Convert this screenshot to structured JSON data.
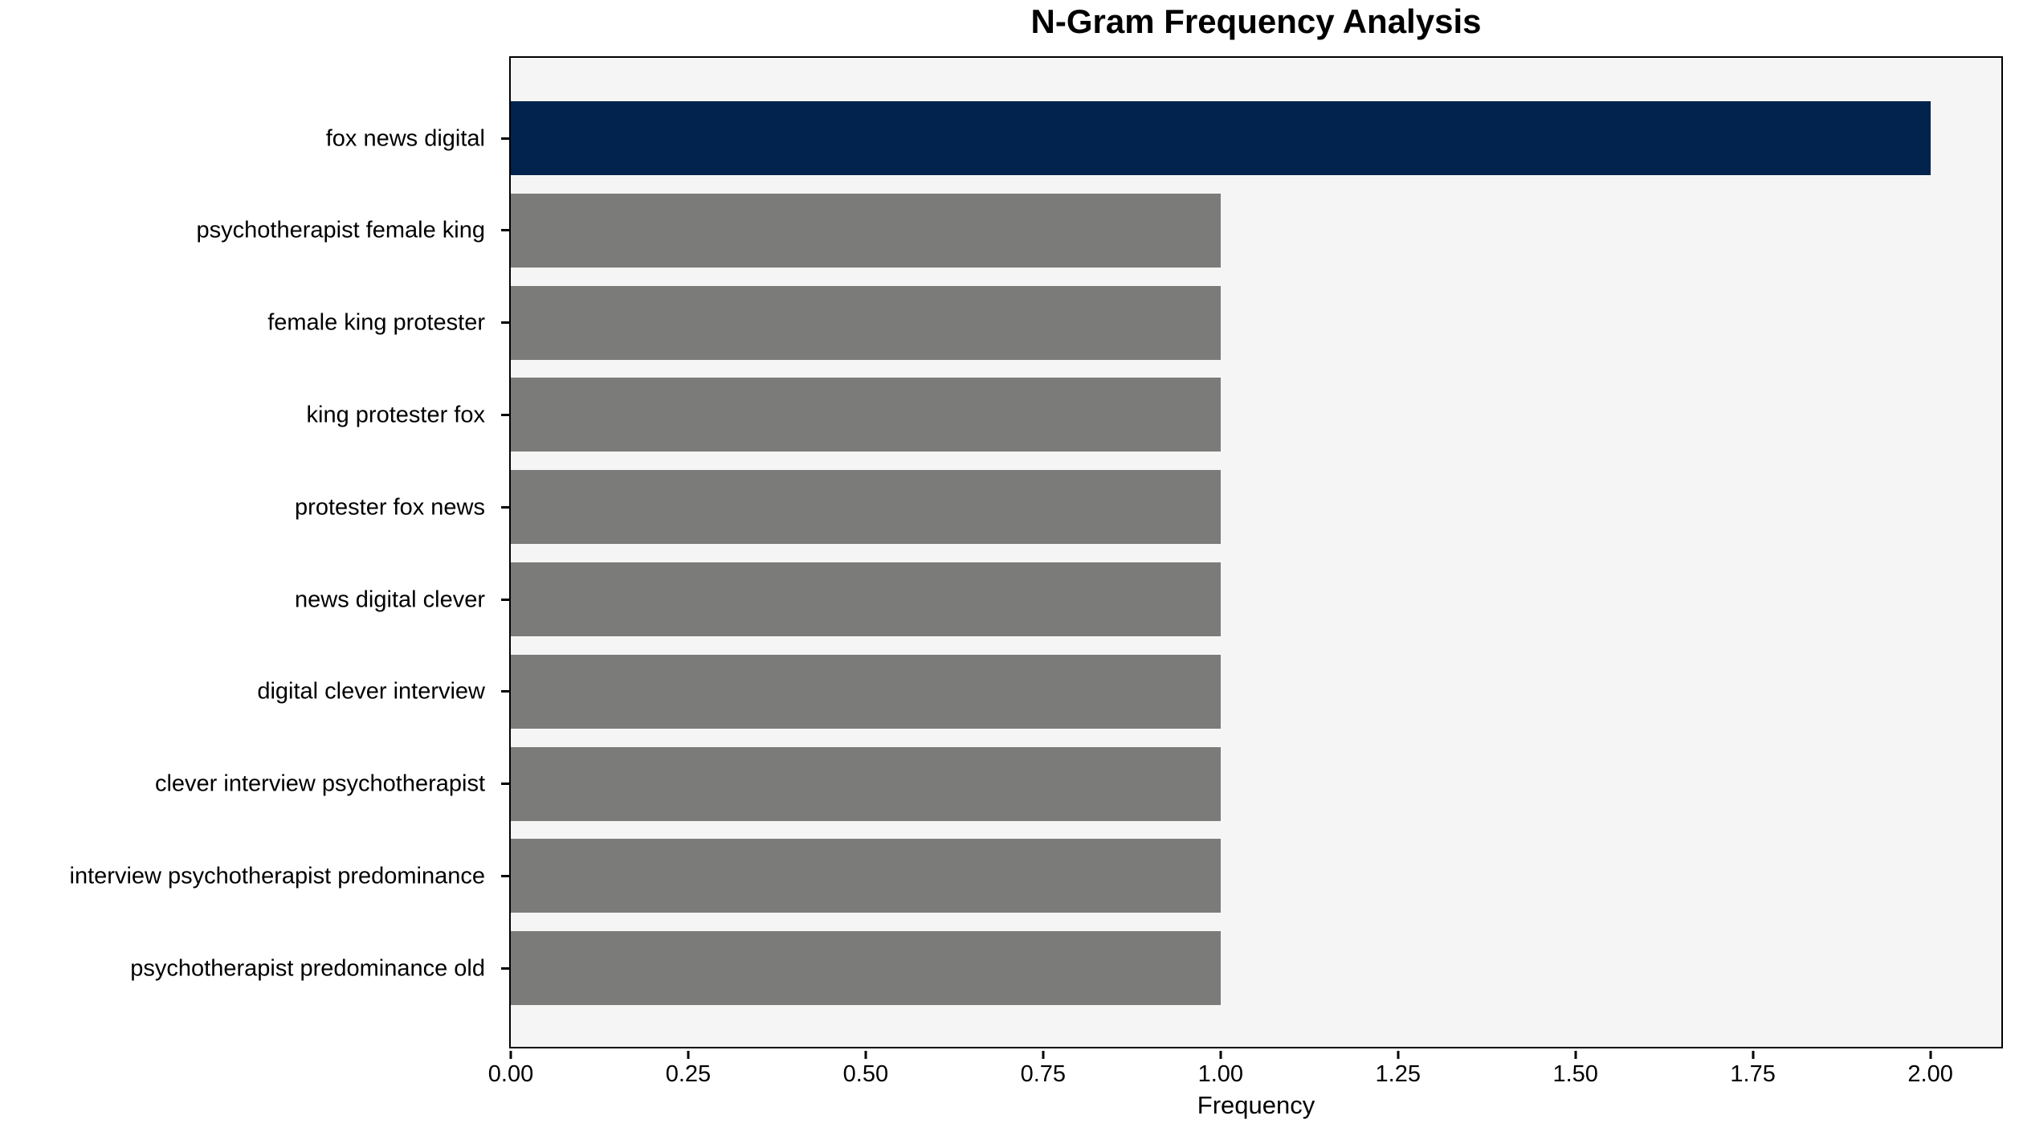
{
  "chart_data": {
    "type": "bar",
    "orientation": "horizontal",
    "title": "N-Gram Frequency Analysis",
    "xlabel": "Frequency",
    "ylabel": "",
    "categories": [
      "fox news digital",
      "psychotherapist female king",
      "female king protester",
      "king protester fox",
      "protester fox news",
      "news digital clever",
      "digital clever interview",
      "clever interview psychotherapist",
      "interview psychotherapist predominance",
      "psychotherapist predominance old"
    ],
    "values": [
      2,
      1,
      1,
      1,
      1,
      1,
      1,
      1,
      1,
      1
    ],
    "bar_colors": [
      "#01234d",
      "#7b7b79",
      "#7b7b79",
      "#7b7b79",
      "#7b7b79",
      "#7b7b79",
      "#7b7b79",
      "#7b7b79",
      "#7b7b79",
      "#7b7b79"
    ],
    "xlim": [
      0,
      2.1
    ],
    "xticks": [
      {
        "value": 0.0,
        "label": "0.00"
      },
      {
        "value": 0.25,
        "label": "0.25"
      },
      {
        "value": 0.5,
        "label": "0.50"
      },
      {
        "value": 0.75,
        "label": "0.75"
      },
      {
        "value": 1.0,
        "label": "1.00"
      },
      {
        "value": 1.25,
        "label": "1.25"
      },
      {
        "value": 1.5,
        "label": "1.50"
      },
      {
        "value": 1.75,
        "label": "1.75"
      },
      {
        "value": 2.0,
        "label": "2.00"
      }
    ],
    "grid": false,
    "legend": null,
    "plot_background": "#f5f5f5",
    "figure_background": "#ffffff",
    "spine_color": "#000000",
    "highlight_color": "#01234d",
    "default_bar_color": "#7b7b79"
  }
}
